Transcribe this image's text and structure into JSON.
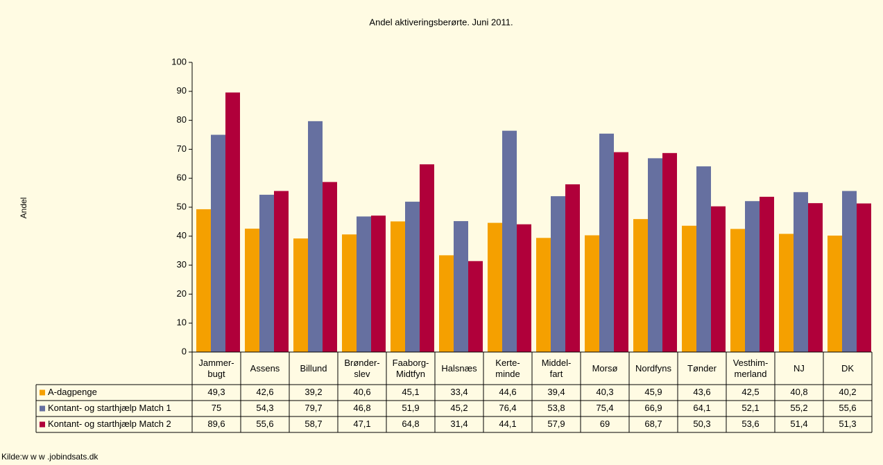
{
  "chart_data": {
    "type": "bar",
    "title": "Andel aktiveringsberørte. Juni 2011.",
    "y_label": "Andel",
    "source": "Kilde:w w w .jobindsats.dk",
    "categories": [
      "Jammer-\nbugt",
      "Assens",
      "Billund",
      "Brønder-\nslev",
      "Faaborg-\nMidtfyn",
      "Halsnæs",
      "Kerte-\nminde",
      "Middel-\nfart",
      "Morsø",
      "Nordfyns",
      "Tønder",
      "Vesthim-\nmerland",
      "NJ",
      "DK"
    ],
    "series": [
      {
        "name": "A-dagpenge",
        "color": "#f5a000",
        "values": [
          49.3,
          42.6,
          39.2,
          40.6,
          45.1,
          33.4,
          44.6,
          39.4,
          40.3,
          45.9,
          43.6,
          42.5,
          40.8,
          40.2
        ],
        "value_labels": [
          "49,3",
          "42,6",
          "39,2",
          "40,6",
          "45,1",
          "33,4",
          "44,6",
          "39,4",
          "40,3",
          "45,9",
          "43,6",
          "42,5",
          "40,8",
          "40,2"
        ]
      },
      {
        "name": "Kontant- og starthjælp Match 1",
        "color": "#6670a0",
        "values": [
          75,
          54.3,
          79.7,
          46.8,
          51.9,
          45.2,
          76.4,
          53.8,
          75.4,
          66.9,
          64.1,
          52.1,
          55.2,
          55.6
        ],
        "value_labels": [
          "75",
          "54,3",
          "79,7",
          "46,8",
          "51,9",
          "45,2",
          "76,4",
          "53,8",
          "75,4",
          "66,9",
          "64,1",
          "52,1",
          "55,2",
          "55,6"
        ]
      },
      {
        "name": "Kontant- og starthjælp Match 2",
        "color": "#b0003a",
        "values": [
          89.6,
          55.6,
          58.7,
          47.1,
          64.8,
          31.4,
          44.1,
          57.9,
          69,
          68.7,
          50.3,
          53.6,
          51.4,
          51.3
        ],
        "value_labels": [
          "89,6",
          "55,6",
          "58,7",
          "47,1",
          "64,8",
          "31,4",
          "44,1",
          "57,9",
          "69",
          "68,7",
          "50,3",
          "53,6",
          "51,4",
          "51,3"
        ]
      }
    ],
    "ylim": [
      0,
      100
    ],
    "yticks": [
      0,
      10,
      20,
      30,
      40,
      50,
      60,
      70,
      80,
      90,
      100
    ],
    "grid": false
  }
}
